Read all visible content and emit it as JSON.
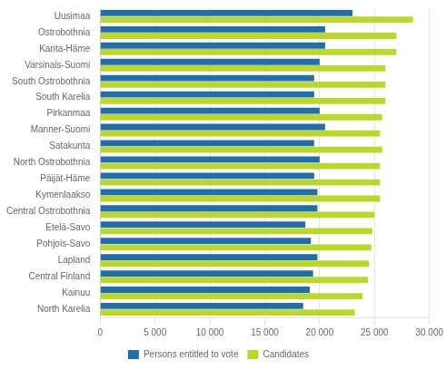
{
  "chart_data": {
    "type": "bar",
    "orientation": "horizontal",
    "categories": [
      "Uusimaa",
      "Ostrobothnia",
      "Kanta-Häme",
      "Varsinais-Suomi",
      "South Ostrobothnia",
      "South Karelia",
      "Pirkanmaa",
      "Manner-Suomi",
      "Satakunta",
      "North Ostrobothnia",
      "Päijät-Häme",
      "Kymenlaakso",
      "Central Ostrobothnia",
      "Etelä-Savo",
      "Pohjois-Savo",
      "Lapland",
      "Central Finland",
      "Kainuu",
      "North Karelia"
    ],
    "series": [
      {
        "name": "Persons entitled to vote",
        "color": "#1F6FAE",
        "values": [
          23000,
          20500,
          20500,
          20000,
          19500,
          19500,
          20000,
          20500,
          19500,
          20000,
          19500,
          19800,
          19800,
          18700,
          19200,
          19800,
          19400,
          19100,
          18500
        ]
      },
      {
        "name": "Candidates",
        "color": "#BDD62A",
        "values": [
          28500,
          27000,
          27000,
          26000,
          26000,
          26000,
          25700,
          25500,
          25700,
          25500,
          25500,
          25500,
          25000,
          24800,
          24700,
          24500,
          24400,
          23900,
          23200
        ]
      }
    ],
    "xlim": [
      0,
      30000
    ],
    "xticks": [
      0,
      {
        "value": 5000,
        "label": "5 000"
      },
      {
        "value": 10000,
        "label": "10 000"
      },
      {
        "value": 15000,
        "label": "15 000"
      },
      {
        "value": 20000,
        "label": "20 000"
      },
      {
        "value": 25000,
        "label": "25 000"
      },
      {
        "value": 30000,
        "label": "30 000"
      }
    ],
    "grid": true,
    "legend": "bottom"
  }
}
